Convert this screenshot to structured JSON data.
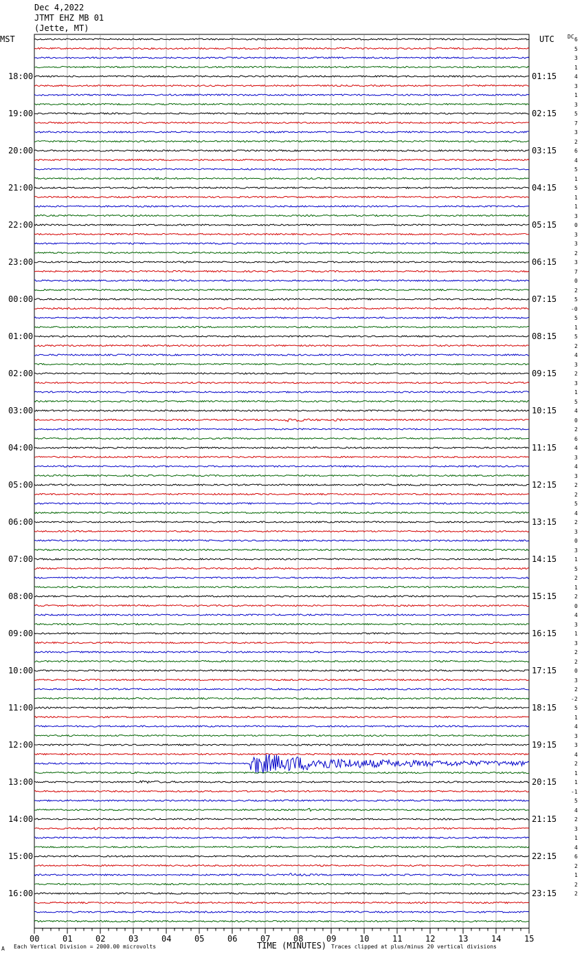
{
  "header": {
    "date": "Dec 4,2022",
    "station": "JTMT EHZ MB 01",
    "location": "(Jette, MT)"
  },
  "left_zone": "MST",
  "right_zone": "UTC",
  "dc_label": "DC",
  "chart_data": {
    "type": "line",
    "xlabel": "TIME (MINUTES)",
    "x_ticks": [
      "00",
      "01",
      "02",
      "03",
      "04",
      "05",
      "06",
      "07",
      "08",
      "09",
      "10",
      "11",
      "12",
      "13",
      "14",
      "15"
    ],
    "xlim": [
      0,
      15
    ],
    "trace_count": 96,
    "trace_colors": [
      "#000000",
      "#d40000",
      "#0000c8",
      "#006400"
    ],
    "left_hour_labels": [
      "18:00",
      "19:00",
      "20:00",
      "21:00",
      "22:00",
      "23:00",
      "00:00",
      "01:00",
      "02:00",
      "03:00",
      "04:00",
      "05:00",
      "06:00",
      "07:00",
      "08:00",
      "09:00",
      "10:00",
      "11:00",
      "12:00",
      "13:00",
      "14:00",
      "15:00",
      "16:00"
    ],
    "right_hour_labels": [
      "01:15",
      "02:15",
      "03:15",
      "04:15",
      "05:15",
      "06:15",
      "07:15",
      "08:15",
      "09:15",
      "10:15",
      "11:15",
      "12:15",
      "13:15",
      "14:15",
      "15:15",
      "16:15",
      "17:15",
      "18:15",
      "19:15",
      "20:15",
      "21:15",
      "22:15",
      "23:15"
    ],
    "first_labeled_trace": 4,
    "dc_offsets": [
      "6",
      "5",
      "3",
      "1",
      "4",
      "3",
      "1",
      "3",
      "5",
      "7",
      "3",
      "2",
      "6",
      "4",
      "5",
      "1",
      "5",
      "1",
      "1",
      "3",
      "0",
      "3",
      "3",
      "2",
      "3",
      "7",
      "0",
      "2",
      "5",
      "-0",
      "5",
      "1",
      "5",
      "2",
      "4",
      "3",
      "2",
      "3",
      "1",
      "5",
      "4",
      "0",
      "2",
      "6",
      "4",
      "3",
      "4",
      "3",
      "2",
      "2",
      "5",
      "4",
      "2",
      "3",
      "0",
      "3",
      "1",
      "5",
      "2",
      "1",
      "2",
      "0",
      "4",
      "3",
      "1",
      "3",
      "2",
      "2",
      "0",
      "3",
      "2",
      "-2",
      "5",
      "1",
      "4",
      "3",
      "3",
      "4",
      "2",
      "1",
      "1",
      "-1",
      "5",
      "4",
      "2",
      "3",
      "1",
      "4",
      "6",
      "2",
      "1",
      "2",
      "2"
    ],
    "events": [
      {
        "trace": 15,
        "minute": 3.6,
        "width_min": 0.6,
        "amplitude": 1.4
      },
      {
        "trace": 41,
        "minute": 7.6,
        "width_min": 1.8,
        "amplitude": 2.5
      },
      {
        "trace": 41,
        "minute": 9.1,
        "width_min": 0.5,
        "amplitude": 1.5
      },
      {
        "trace": 78,
        "minute": 6.55,
        "width_min": 8.5,
        "amplitude": 14
      },
      {
        "trace": 80,
        "minute": 3.2,
        "width_min": 1.5,
        "amplitude": 1.6
      },
      {
        "trace": 83,
        "minute": 8.3,
        "width_min": 0.8,
        "amplitude": 1.3
      },
      {
        "trace": 85,
        "minute": 1.8,
        "width_min": 0.3,
        "amplitude": 1.5
      },
      {
        "trace": 90,
        "minute": 7.7,
        "width_min": 1.2,
        "amplitude": 1.7
      }
    ]
  },
  "footer": {
    "scale_note": "Each Vertical Division = 2000.00 microvolts",
    "clip_note": "Traces clipped at plus/minus 20 vertical divisions",
    "corner_mark": "A"
  }
}
